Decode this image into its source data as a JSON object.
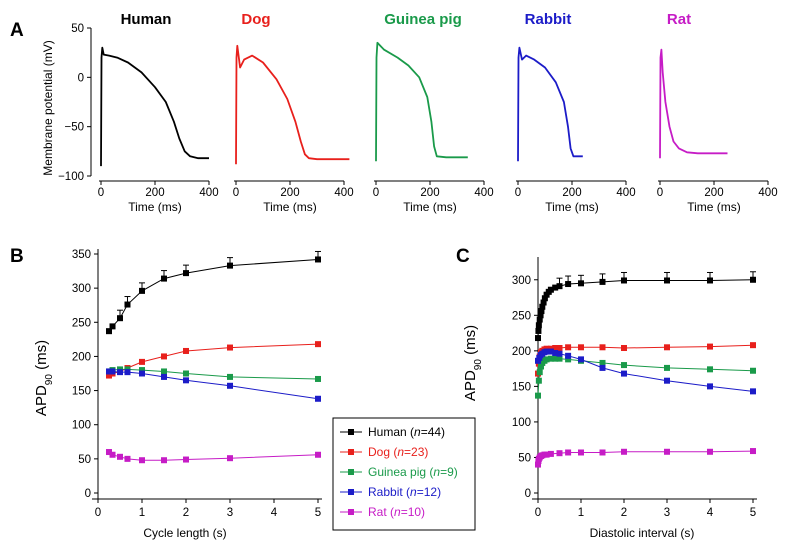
{
  "panels": {
    "a": "A",
    "b": "B",
    "c": "C"
  },
  "panel_a": {
    "ylabel": "Membrane potential (mV)",
    "yticks": [
      "50",
      "0",
      "−50",
      "−100"
    ],
    "species": [
      {
        "label": "Human",
        "color": "#000000",
        "xticks": [
          "0",
          "200",
          "400"
        ],
        "xlabel": "Time (ms)"
      },
      {
        "label": "Dog",
        "color": "#e8201c",
        "xticks": [
          "0",
          "200",
          "400"
        ],
        "xlabel": "Time (ms)"
      },
      {
        "label": "Guinea pig",
        "color": "#1a9a4a",
        "xticks": [
          "0",
          "200",
          "400"
        ],
        "xlabel": "Time (ms)"
      },
      {
        "label": "Rabbit",
        "color": "#1c1cc8",
        "xticks": [
          "0",
          "200",
          "400"
        ],
        "xlabel": "Time (ms)"
      },
      {
        "label": "Rat",
        "color": "#c61cc6",
        "xticks": [
          "0",
          "200",
          "400"
        ],
        "xlabel": "Time (ms)"
      }
    ]
  },
  "chart_data": [
    {
      "type": "line",
      "panel": "A",
      "description_units": "Time (ms) vs Membrane potential (mV)",
      "xlim": [
        0,
        400
      ],
      "ylim": [
        -100,
        50
      ],
      "series": [
        {
          "name": "Human",
          "x": [
            0,
            2,
            5,
            10,
            30,
            60,
            100,
            150,
            200,
            240,
            270,
            290,
            310,
            330,
            360,
            400
          ],
          "y": [
            -90,
            20,
            30,
            23,
            22,
            20,
            15,
            5,
            -10,
            -25,
            -45,
            -62,
            -75,
            -80,
            -82,
            -82
          ]
        },
        {
          "name": "Dog",
          "x": [
            0,
            2,
            5,
            15,
            30,
            60,
            100,
            150,
            190,
            220,
            240,
            255,
            270,
            300,
            340,
            420
          ],
          "y": [
            -88,
            20,
            32,
            10,
            18,
            22,
            15,
            -2,
            -22,
            -45,
            -65,
            -78,
            -82,
            -83,
            -83,
            -83
          ]
        },
        {
          "name": "Guinea pig",
          "x": [
            0,
            2,
            5,
            30,
            80,
            120,
            160,
            190,
            205,
            215,
            225,
            260,
            300,
            340
          ],
          "y": [
            -85,
            20,
            35,
            28,
            20,
            12,
            0,
            -20,
            -45,
            -70,
            -80,
            -81,
            -81,
            -81
          ]
        },
        {
          "name": "Rabbit",
          "x": [
            0,
            2,
            5,
            15,
            30,
            60,
            100,
            140,
            170,
            185,
            195,
            205,
            240
          ],
          "y": [
            -85,
            20,
            30,
            18,
            22,
            18,
            10,
            -5,
            -25,
            -50,
            -72,
            -80,
            -80
          ]
        },
        {
          "name": "Rat",
          "x": [
            0,
            2,
            5,
            10,
            20,
            35,
            50,
            70,
            100,
            140,
            200,
            250
          ],
          "y": [
            -82,
            20,
            28,
            5,
            -25,
            -50,
            -65,
            -72,
            -76,
            -77,
            -77,
            -77
          ]
        }
      ]
    },
    {
      "type": "line",
      "panel": "B",
      "xlabel": "Cycle length (s)",
      "ylabel": "APD90 (ms)",
      "xlim": [
        0,
        5
      ],
      "ylim": [
        0,
        350
      ],
      "xticks": [
        "0",
        "1",
        "2",
        "3",
        "4",
        "5"
      ],
      "yticks": [
        "0",
        "50",
        "100",
        "150",
        "200",
        "250",
        "300",
        "350"
      ],
      "series": [
        {
          "name": "Human",
          "x": [
            0.25,
            0.33,
            0.5,
            0.67,
            1,
            1.5,
            2,
            3,
            5
          ],
          "y": [
            237,
            244,
            256,
            276,
            296,
            314,
            322,
            333,
            342
          ]
        },
        {
          "name": "Dog",
          "x": [
            0.25,
            0.33,
            0.5,
            0.67,
            1,
            1.5,
            2,
            3,
            5
          ],
          "y": [
            172,
            175,
            178,
            183,
            192,
            200,
            208,
            213,
            218
          ]
        },
        {
          "name": "Guinea pig",
          "x": [
            0.25,
            0.33,
            0.5,
            0.67,
            1,
            1.5,
            2,
            3,
            5
          ],
          "y": [
            178,
            180,
            181,
            181,
            180,
            178,
            175,
            170,
            167
          ]
        },
        {
          "name": "Rabbit",
          "x": [
            0.25,
            0.33,
            0.5,
            0.67,
            1,
            1.5,
            2,
            3,
            5
          ],
          "y": [
            178,
            178,
            177,
            177,
            175,
            170,
            165,
            157,
            138
          ]
        },
        {
          "name": "Rat",
          "x": [
            0.25,
            0.33,
            0.5,
            0.67,
            1,
            1.5,
            2,
            3,
            5
          ],
          "y": [
            60,
            56,
            53,
            50,
            48,
            48,
            49,
            51,
            56
          ]
        }
      ]
    },
    {
      "type": "line",
      "panel": "C",
      "xlabel": "Diastolic interval (s)",
      "ylabel": "APD90 (ms)",
      "xlim": [
        0,
        5
      ],
      "ylim": [
        0,
        325
      ],
      "xticks": [
        "0",
        "1",
        "2",
        "3",
        "4",
        "5"
      ],
      "yticks": [
        "0",
        "50",
        "100",
        "150",
        "200",
        "250",
        "300"
      ],
      "series": [
        {
          "name": "Human",
          "x": [
            0.0,
            0.01,
            0.02,
            0.04,
            0.06,
            0.08,
            0.1,
            0.13,
            0.16,
            0.2,
            0.25,
            0.3,
            0.4,
            0.5,
            0.7,
            1,
            1.5,
            2,
            3,
            4,
            5
          ],
          "y": [
            218,
            228,
            236,
            244,
            250,
            256,
            262,
            268,
            274,
            279,
            283,
            286,
            289,
            291,
            294,
            295,
            297,
            299,
            299,
            299,
            300
          ]
        },
        {
          "name": "Dog",
          "x": [
            0.0,
            0.02,
            0.04,
            0.07,
            0.1,
            0.15,
            0.2,
            0.3,
            0.4,
            0.5,
            0.7,
            1,
            1.5,
            2,
            3,
            4,
            5
          ],
          "y": [
            168,
            182,
            192,
            198,
            200,
            202,
            203,
            203,
            204,
            204,
            205,
            205,
            205,
            204,
            205,
            206,
            208
          ]
        },
        {
          "name": "Guinea pig",
          "x": [
            0.0,
            0.02,
            0.04,
            0.07,
            0.1,
            0.15,
            0.2,
            0.3,
            0.4,
            0.5,
            0.7,
            1,
            1.5,
            2,
            3,
            4,
            5
          ],
          "y": [
            137,
            158,
            170,
            178,
            183,
            186,
            188,
            189,
            189,
            189,
            188,
            186,
            183,
            180,
            176,
            174,
            172
          ]
        },
        {
          "name": "Rabbit",
          "x": [
            0.0,
            0.03,
            0.06,
            0.1,
            0.15,
            0.2,
            0.3,
            0.4,
            0.5,
            0.7,
            1,
            1.5,
            2,
            3,
            4,
            5
          ],
          "y": [
            186,
            190,
            194,
            196,
            198,
            199,
            199,
            197,
            196,
            193,
            188,
            176,
            168,
            158,
            150,
            143
          ]
        },
        {
          "name": "Rat",
          "x": [
            0.0,
            0.01,
            0.02,
            0.04,
            0.07,
            0.1,
            0.15,
            0.2,
            0.3,
            0.5,
            0.7,
            1,
            1.5,
            2,
            3,
            4,
            5
          ],
          "y": [
            40,
            45,
            48,
            50,
            52,
            53,
            54,
            54,
            55,
            56,
            57,
            57,
            57,
            58,
            58,
            58,
            59
          ]
        }
      ]
    }
  ],
  "legend": {
    "items": [
      {
        "name": "Human",
        "n": "44",
        "color": "#000000"
      },
      {
        "name": "Dog",
        "n": "23",
        "color": "#e8201c"
      },
      {
        "name": "Guinea pig",
        "n": "9",
        "color": "#1a9a4a"
      },
      {
        "name": "Rabbit",
        "n": "12",
        "color": "#1c1cc8"
      },
      {
        "name": "Rat",
        "n": "10",
        "color": "#c61cc6"
      }
    ],
    "n_label": "n"
  }
}
